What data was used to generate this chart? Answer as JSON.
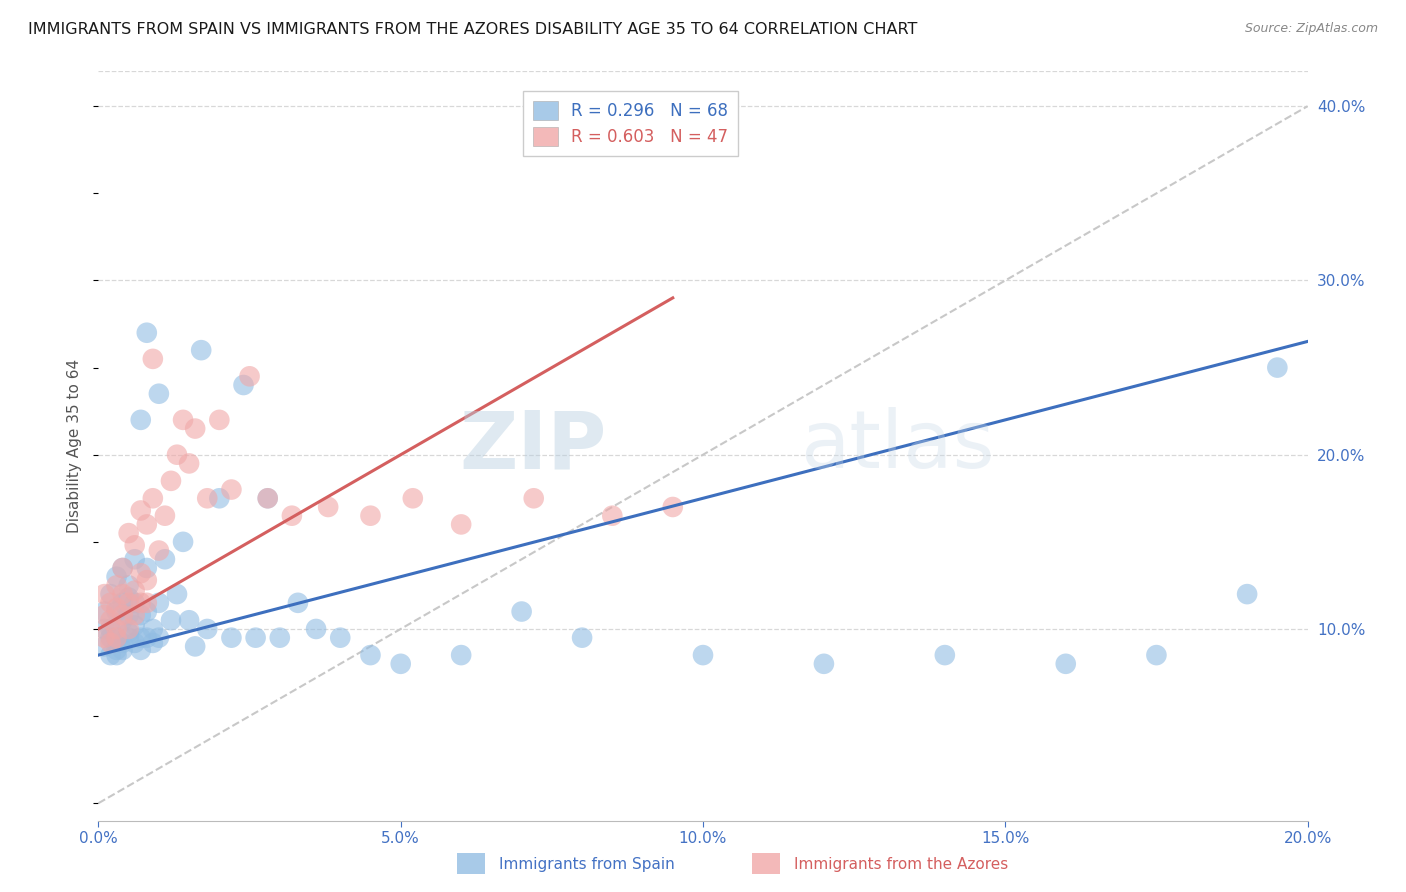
{
  "title": "IMMIGRANTS FROM SPAIN VS IMMIGRANTS FROM THE AZORES DISABILITY AGE 35 TO 64 CORRELATION CHART",
  "source": "Source: ZipAtlas.com",
  "ylabel_left": "Disability Age 35 to 64",
  "xlabel_legend_blue": "Immigrants from Spain",
  "xlabel_legend_pink": "Immigrants from the Azores",
  "legend_blue_R": "R = 0.296",
  "legend_blue_N": "N = 68",
  "legend_pink_R": "R = 0.603",
  "legend_pink_N": "N = 47",
  "xlim": [
    0.0,
    0.2
  ],
  "ylim": [
    -0.01,
    0.42
  ],
  "xticks": [
    0.0,
    0.05,
    0.1,
    0.15,
    0.2
  ],
  "yticks_right": [
    0.1,
    0.2,
    0.3,
    0.4
  ],
  "color_blue": "#92bde3",
  "color_pink": "#f0a8a8",
  "color_blue_line": "#3d6fbe",
  "color_pink_line": "#d45f5f",
  "color_diagonal": "#c8c8c8",
  "background": "#ffffff",
  "title_color": "#1a1a1a",
  "tick_label_color": "#4472c4",
  "watermark_color": "#c8d8e8",
  "watermark": "ZIPatlas",
  "blue_scatter_x": [
    0.001,
    0.001,
    0.001,
    0.002,
    0.002,
    0.002,
    0.002,
    0.003,
    0.003,
    0.003,
    0.003,
    0.003,
    0.004,
    0.004,
    0.004,
    0.004,
    0.004,
    0.005,
    0.005,
    0.005,
    0.005,
    0.005,
    0.006,
    0.006,
    0.006,
    0.006,
    0.007,
    0.007,
    0.007,
    0.007,
    0.008,
    0.008,
    0.008,
    0.008,
    0.009,
    0.009,
    0.01,
    0.01,
    0.01,
    0.011,
    0.012,
    0.013,
    0.014,
    0.015,
    0.016,
    0.017,
    0.018,
    0.02,
    0.022,
    0.024,
    0.026,
    0.028,
    0.03,
    0.033,
    0.036,
    0.04,
    0.045,
    0.05,
    0.06,
    0.07,
    0.08,
    0.1,
    0.12,
    0.14,
    0.16,
    0.175,
    0.19,
    0.195
  ],
  "blue_scatter_y": [
    0.09,
    0.1,
    0.11,
    0.085,
    0.095,
    0.1,
    0.12,
    0.088,
    0.095,
    0.11,
    0.13,
    0.085,
    0.092,
    0.105,
    0.115,
    0.135,
    0.088,
    0.095,
    0.108,
    0.118,
    0.098,
    0.125,
    0.092,
    0.102,
    0.115,
    0.14,
    0.095,
    0.108,
    0.22,
    0.088,
    0.095,
    0.11,
    0.135,
    0.27,
    0.092,
    0.1,
    0.095,
    0.115,
    0.235,
    0.14,
    0.105,
    0.12,
    0.15,
    0.105,
    0.09,
    0.26,
    0.1,
    0.175,
    0.095,
    0.24,
    0.095,
    0.175,
    0.095,
    0.115,
    0.1,
    0.095,
    0.085,
    0.08,
    0.085,
    0.11,
    0.095,
    0.085,
    0.08,
    0.085,
    0.08,
    0.085,
    0.12,
    0.25
  ],
  "pink_scatter_x": [
    0.001,
    0.001,
    0.001,
    0.002,
    0.002,
    0.002,
    0.003,
    0.003,
    0.003,
    0.003,
    0.004,
    0.004,
    0.004,
    0.005,
    0.005,
    0.005,
    0.006,
    0.006,
    0.006,
    0.007,
    0.007,
    0.007,
    0.008,
    0.008,
    0.008,
    0.009,
    0.009,
    0.01,
    0.011,
    0.012,
    0.013,
    0.014,
    0.015,
    0.016,
    0.018,
    0.02,
    0.022,
    0.025,
    0.028,
    0.032,
    0.038,
    0.045,
    0.052,
    0.06,
    0.072,
    0.085,
    0.095
  ],
  "pink_scatter_y": [
    0.095,
    0.108,
    0.12,
    0.092,
    0.105,
    0.115,
    0.1,
    0.112,
    0.125,
    0.095,
    0.108,
    0.12,
    0.135,
    0.1,
    0.115,
    0.155,
    0.108,
    0.122,
    0.148,
    0.115,
    0.132,
    0.168,
    0.115,
    0.128,
    0.16,
    0.175,
    0.255,
    0.145,
    0.165,
    0.185,
    0.2,
    0.22,
    0.195,
    0.215,
    0.175,
    0.22,
    0.18,
    0.245,
    0.175,
    0.165,
    0.17,
    0.165,
    0.175,
    0.16,
    0.175,
    0.165,
    0.17
  ],
  "blue_line_x": [
    0.0,
    0.2
  ],
  "blue_line_y": [
    0.085,
    0.265
  ],
  "pink_line_x": [
    0.0,
    0.095
  ],
  "pink_line_y": [
    0.1,
    0.29
  ],
  "diag_line_x": [
    0.0,
    0.2
  ],
  "diag_line_y": [
    0.0,
    0.4
  ],
  "grid_color": "#d8d8d8",
  "title_fontsize": 11.5,
  "axis_label_fontsize": 11,
  "tick_fontsize": 11
}
